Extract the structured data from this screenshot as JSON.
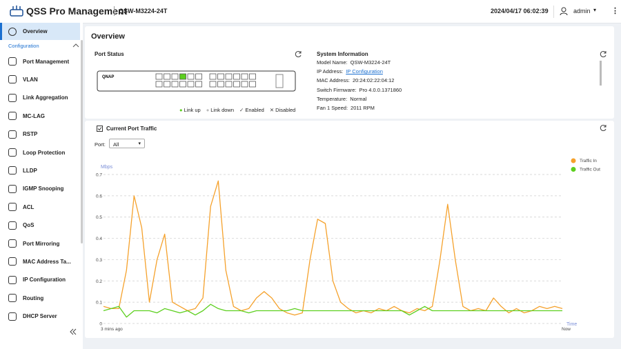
{
  "header": {
    "title": "QSS Pro Management",
    "model": "QSW-M3224-24T",
    "datetime": "2024/04/17 06:02:39",
    "user": "admin"
  },
  "sidebar": {
    "active": "Overview",
    "section": "Configuration",
    "items": [
      "Port Management",
      "VLAN",
      "Link Aggregation",
      "MC-LAG",
      "RSTP",
      "Loop Protection",
      "LLDP",
      "IGMP Snooping",
      "ACL",
      "QoS",
      "Port Mirroring",
      "MAC Address Ta...",
      "IP Configuration",
      "Routing",
      "DHCP Server"
    ]
  },
  "page_title": "Overview",
  "port_status": {
    "title": "Port Status",
    "brand": "QNAP",
    "legend": [
      "Link up",
      "Link down",
      "Enabled",
      "Disabled"
    ]
  },
  "system_info": {
    "title": "System Information",
    "rows": [
      [
        "Model Name:",
        "QSW-M3224-24T"
      ],
      [
        "IP Address:",
        "IP Configuration"
      ],
      [
        "MAC Address:",
        "20:24:02:22:04:12"
      ],
      [
        "Switch Firmware:",
        "Pro 4.0.0.1371860"
      ],
      [
        "Temperature:",
        "Normal"
      ],
      [
        "Fan 1 Speed:",
        "2011 RPM"
      ]
    ]
  },
  "traffic": {
    "title": "Current Port Traffic",
    "port_label": "Port:",
    "port_value": "All",
    "chart_data": {
      "type": "line",
      "y_label": "Mbps",
      "x_label": "Time",
      "x_labels": [
        "3 mins ago",
        "Now"
      ],
      "ylim": [
        0,
        0.7
      ],
      "yticks": [
        0,
        0.1,
        0.2,
        0.3,
        0.4,
        0.5,
        0.6,
        0.7
      ],
      "grid": true,
      "legend": "top-right",
      "series": [
        {
          "name": "Traffic In",
          "color": "#f5a12b",
          "values": [
            0.08,
            0.07,
            0.07,
            0.25,
            0.6,
            0.45,
            0.1,
            0.3,
            0.42,
            0.1,
            0.08,
            0.06,
            0.07,
            0.12,
            0.55,
            0.67,
            0.25,
            0.08,
            0.06,
            0.07,
            0.12,
            0.15,
            0.12,
            0.07,
            0.05,
            0.04,
            0.05,
            0.3,
            0.49,
            0.47,
            0.2,
            0.1,
            0.07,
            0.05,
            0.06,
            0.05,
            0.07,
            0.06,
            0.08,
            0.06,
            0.05,
            0.07,
            0.06,
            0.08,
            0.3,
            0.56,
            0.3,
            0.08,
            0.06,
            0.07,
            0.06,
            0.12,
            0.08,
            0.05,
            0.07,
            0.05,
            0.06,
            0.08,
            0.07,
            0.08,
            0.07
          ]
        },
        {
          "name": "Traffic Out",
          "color": "#5ccf1e",
          "values": [
            0.06,
            0.07,
            0.08,
            0.03,
            0.06,
            0.06,
            0.06,
            0.05,
            0.07,
            0.06,
            0.05,
            0.06,
            0.04,
            0.06,
            0.09,
            0.07,
            0.06,
            0.06,
            0.06,
            0.05,
            0.06,
            0.06,
            0.06,
            0.06,
            0.06,
            0.07,
            0.06,
            0.06,
            0.06,
            0.06,
            0.06,
            0.06,
            0.06,
            0.06,
            0.06,
            0.06,
            0.06,
            0.06,
            0.06,
            0.06,
            0.04,
            0.06,
            0.08,
            0.06,
            0.06,
            0.06,
            0.06,
            0.06,
            0.06,
            0.06,
            0.06,
            0.06,
            0.06,
            0.06,
            0.06,
            0.06,
            0.06,
            0.06,
            0.06,
            0.06,
            0.06
          ]
        }
      ]
    }
  }
}
